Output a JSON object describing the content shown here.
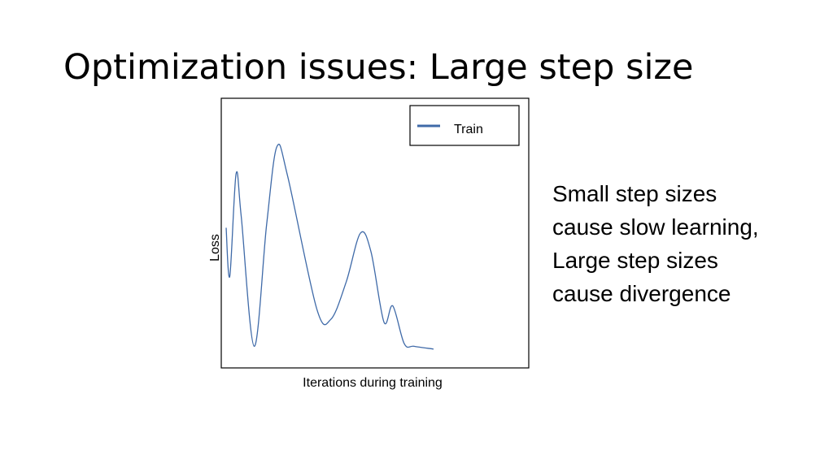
{
  "slide": {
    "title": "Optimization issues: Large step size",
    "side_text": [
      "Small step sizes",
      "cause slow learning,",
      "Large step sizes",
      "cause divergence"
    ]
  },
  "chart_data": {
    "type": "line",
    "title": "",
    "xlabel": "Iterations during training",
    "ylabel": "Loss",
    "ticks_visible": false,
    "grid": false,
    "legend_position": "top-right",
    "series": [
      {
        "name": "Train",
        "color": "#3f6aa8",
        "style": "wiggly oscillating curve with growing-then-shrinking swings",
        "points": [
          [
            0.0,
            0.52
          ],
          [
            0.012,
            0.34
          ],
          [
            0.033,
            0.72
          ],
          [
            0.05,
            0.56
          ],
          [
            0.093,
            0.08
          ],
          [
            0.134,
            0.53
          ],
          [
            0.168,
            0.82
          ],
          [
            0.204,
            0.71
          ],
          [
            0.3,
            0.22
          ],
          [
            0.347,
            0.18
          ],
          [
            0.398,
            0.32
          ],
          [
            0.445,
            0.5
          ],
          [
            0.48,
            0.43
          ],
          [
            0.523,
            0.17
          ],
          [
            0.552,
            0.23
          ],
          [
            0.59,
            0.09
          ],
          [
            0.623,
            0.08
          ],
          [
            0.687,
            0.07
          ]
        ]
      }
    ]
  }
}
